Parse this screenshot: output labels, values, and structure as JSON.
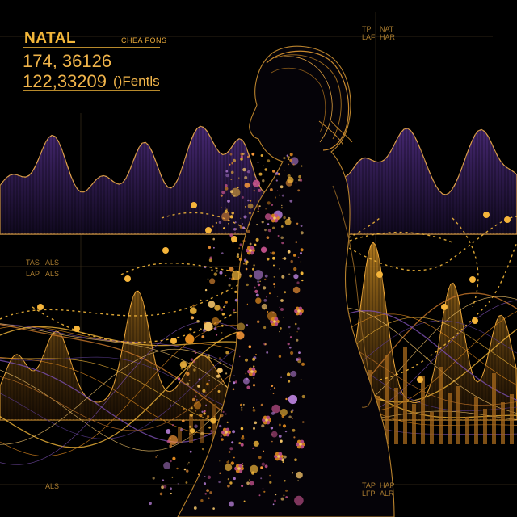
{
  "hud": {
    "title": "NATAL",
    "subtitle": "CHEA FONS",
    "reading_1": "174, 36126",
    "reading_2": "122,33209",
    "note": "()Fentls"
  },
  "corner_labels": {
    "top_center_a": "TP",
    "top_center_b": "NAT",
    "top_center_c": "LAF",
    "top_center_d": "HAR",
    "left_mid_a": "TAS",
    "left_mid_b": "ALS",
    "left_mid_c": "LAP",
    "left_mid_d": "ALS",
    "bottom_left": "ALS",
    "bottom_center_a": "TAP",
    "bottom_center_b": "HAP",
    "bottom_center_c": "LFP",
    "bottom_center_d": "ALR"
  },
  "colors": {
    "background": "#000000",
    "gold": "#f2b63a",
    "amber": "#e08a1e",
    "violet": "#4a2a78",
    "pink": "#c0508a"
  }
}
